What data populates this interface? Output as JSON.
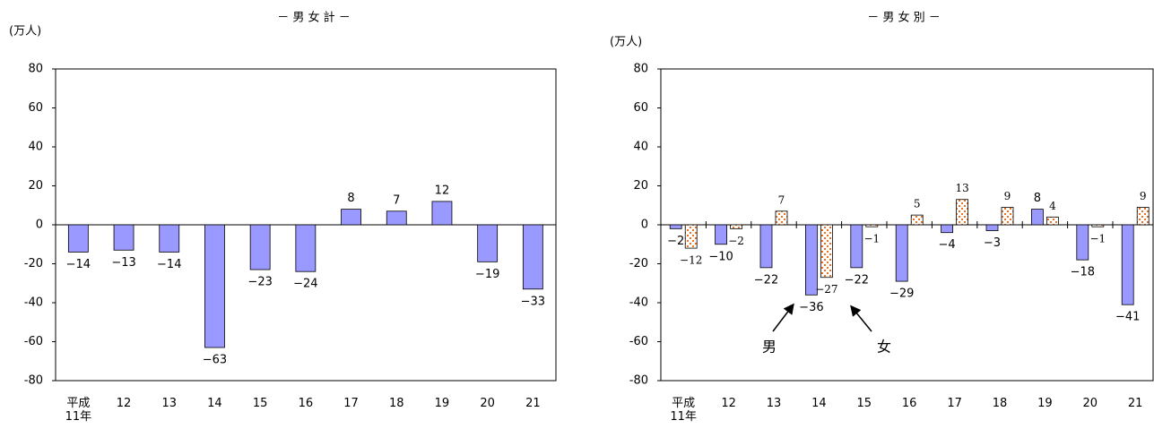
{
  "chart_data": [
    {
      "type": "bar",
      "title": "－ 男 女 計 －",
      "y_label": "(万人)",
      "categories": [
        "平成\n11年",
        "12",
        "13",
        "14",
        "15",
        "16",
        "17",
        "18",
        "19",
        "20",
        "21"
      ],
      "values": [
        -14,
        -13,
        -14,
        -63,
        -23,
        -24,
        8,
        7,
        12,
        -19,
        -33
      ],
      "value_labels": [
        "−14",
        "−13",
        "−14",
        "−63",
        "−23",
        "−24",
        "8",
        "7",
        "12",
        "−19",
        "−33"
      ],
      "color": "#9999ff",
      "ylim": [
        -80,
        80
      ],
      "yticks": [
        -80,
        -60,
        -40,
        -20,
        0,
        20,
        40,
        60,
        80
      ]
    },
    {
      "type": "grouped_bar",
      "title": "－ 男 女 別 －",
      "y_label": "(万人)",
      "categories": [
        "平成\n11年",
        "12",
        "13",
        "14",
        "15",
        "16",
        "17",
        "18",
        "19",
        "20",
        "21"
      ],
      "series": [
        {
          "name": "男",
          "color": "#9999ff",
          "values": [
            -2,
            -10,
            -22,
            -36,
            -22,
            -29,
            -4,
            -3,
            8,
            -18,
            -41
          ],
          "value_labels": [
            "−2",
            "−10",
            "−22",
            "−36",
            "−22",
            "−29",
            "−4",
            "−3",
            "8",
            "−18",
            "−41"
          ]
        },
        {
          "name": "女",
          "color": "#f07020",
          "values": [
            -12,
            -2,
            7,
            -27,
            -1,
            5,
            13,
            9,
            4,
            -1,
            9
          ],
          "value_labels": [
            "−12",
            "−2",
            "7",
            "−27",
            "−1",
            "5",
            "13",
            "9",
            "4",
            "−1",
            "9"
          ]
        }
      ],
      "ylim": [
        -80,
        80
      ],
      "yticks": [
        -80,
        -60,
        -40,
        -20,
        0,
        20,
        40,
        60,
        80
      ]
    }
  ]
}
